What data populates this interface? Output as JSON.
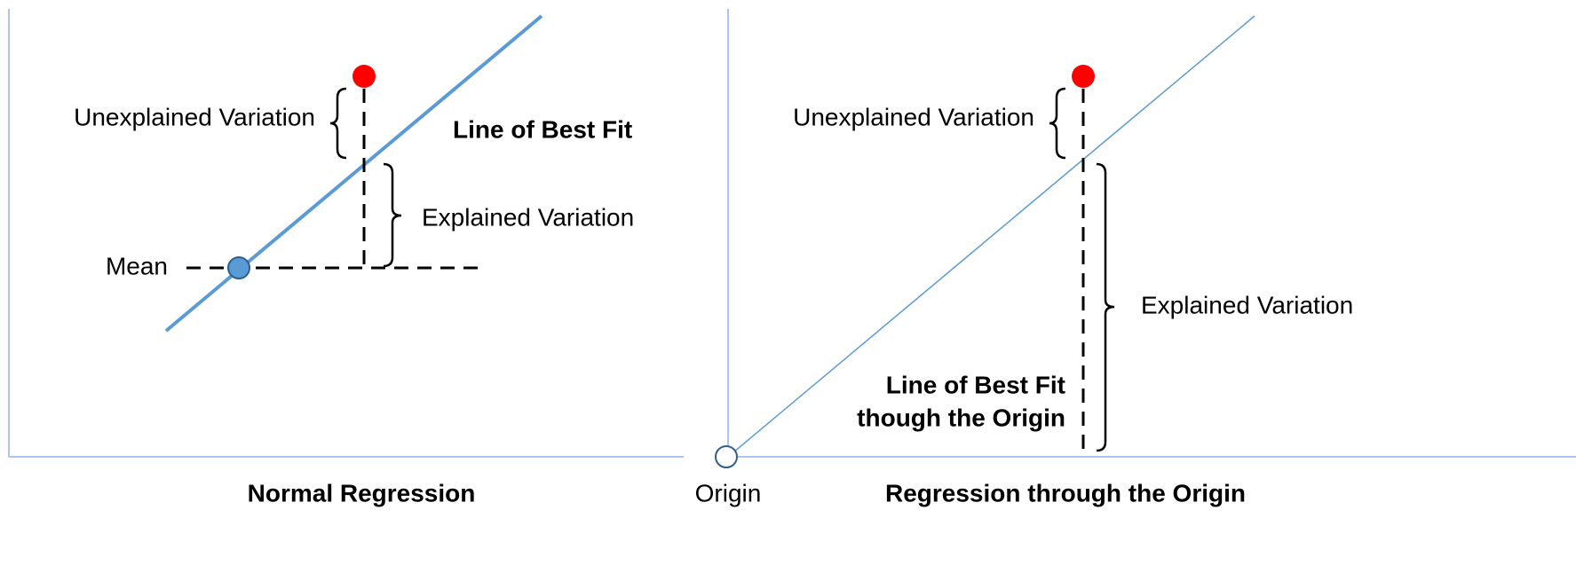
{
  "left_panel": {
    "unexplained_label": "Unexplained Variation",
    "explained_label": "Explained Variation",
    "fit_label": "Line of Best Fit",
    "mean_label": "Mean",
    "caption": "Normal Regression"
  },
  "right_panel": {
    "unexplained_label": "Unexplained Variation",
    "explained_label": "Explained Variation",
    "fit_label_lines": [
      "Line of Best Fit",
      "though the Origin"
    ],
    "origin_label": "Origin",
    "caption": "Regression through the Origin"
  }
}
